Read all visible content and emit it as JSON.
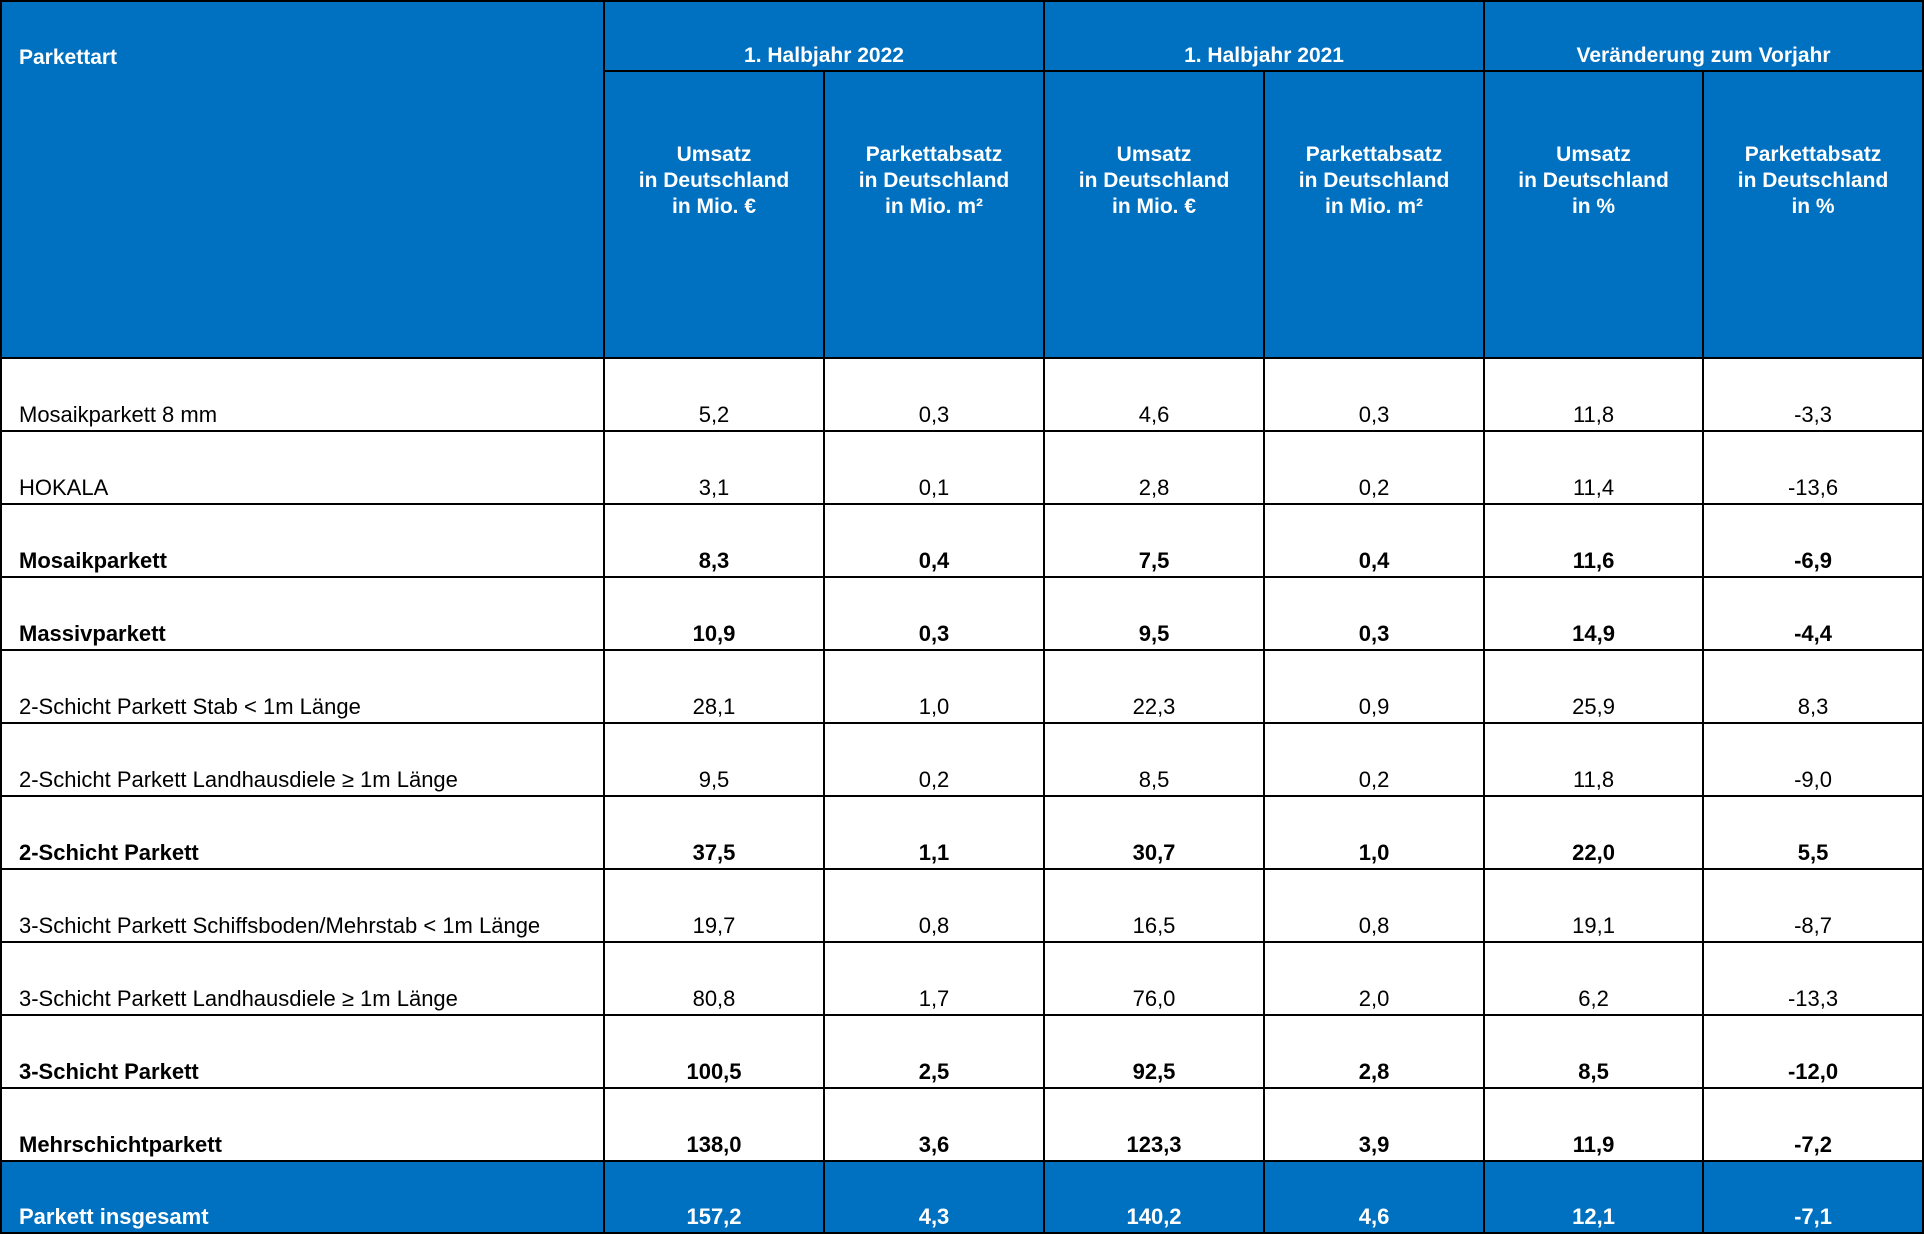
{
  "header": {
    "col_label": "Parkettart",
    "groups": [
      "1. Halbjahr  2022",
      "1. Halbjahr 2021",
      "Veränderung zum Vorjahr"
    ],
    "sub": [
      [
        "Umsatz",
        "in Deutschland",
        "in Mio. €"
      ],
      [
        "Parkettabsatz",
        "in Deutschland",
        "in Mio. m²"
      ],
      [
        "Umsatz",
        "in Deutschland",
        "in Mio. €"
      ],
      [
        "Parkettabsatz",
        "in Deutschland",
        "in Mio. m²"
      ],
      [
        "Umsatz",
        "in Deutschland",
        "in %"
      ],
      [
        "Parkettabsatz",
        "in Deutschland",
        "in %"
      ]
    ]
  },
  "rows": [
    {
      "label": "Mosaikparkett 8 mm",
      "bold": false,
      "values": [
        "5,2",
        "0,3",
        "4,6",
        "0,3",
        "11,8",
        "-3,3"
      ]
    },
    {
      "label": "HOKALA",
      "bold": false,
      "values": [
        "3,1",
        "0,1",
        "2,8",
        "0,2",
        "11,4",
        "-13,6"
      ]
    },
    {
      "label": "Mosaikparkett",
      "bold": true,
      "values": [
        "8,3",
        "0,4",
        "7,5",
        "0,4",
        "11,6",
        "-6,9"
      ]
    },
    {
      "label": "Massivparkett",
      "bold": true,
      "values": [
        "10,9",
        "0,3",
        "9,5",
        "0,3",
        "14,9",
        "-4,4"
      ]
    },
    {
      "label": "2-Schicht Parkett  Stab < 1m Länge",
      "bold": false,
      "values": [
        "28,1",
        "1,0",
        "22,3",
        "0,9",
        "25,9",
        "8,3"
      ]
    },
    {
      "label": "2-Schicht Parkett Landhausdiele ≥ 1m Länge",
      "bold": false,
      "values": [
        "9,5",
        "0,2",
        "8,5",
        "0,2",
        "11,8",
        "-9,0"
      ]
    },
    {
      "label": "2-Schicht Parkett",
      "bold": true,
      "values": [
        "37,5",
        "1,1",
        "30,7",
        "1,0",
        "22,0",
        "5,5"
      ]
    },
    {
      "label": "3-Schicht Parkett Schiffsboden/Mehrstab < 1m Länge",
      "bold": false,
      "values": [
        "19,7",
        "0,8",
        "16,5",
        "0,8",
        "19,1",
        "-8,7"
      ]
    },
    {
      "label": "3-Schicht Parkett Landhausdiele ≥ 1m Länge",
      "bold": false,
      "values": [
        "80,8",
        "1,7",
        "76,0",
        "2,0",
        "6,2",
        "-13,3"
      ]
    },
    {
      "label": "3-Schicht Parkett",
      "bold": true,
      "values": [
        "100,5",
        "2,5",
        "92,5",
        "2,8",
        "8,5",
        "-12,0"
      ]
    },
    {
      "label": "Mehrschichtparkett",
      "bold": true,
      "values": [
        "138,0",
        "3,6",
        "123,3",
        "3,9",
        "11,9",
        "-7,2"
      ]
    }
  ],
  "total": {
    "label": "Parkett insgesamt",
    "values": [
      "157,2",
      "4,3",
      "140,2",
      "4,6",
      "12,1",
      "-7,1"
    ]
  },
  "colors": {
    "header_bg": "#0070c0",
    "header_text": "#ffffff",
    "border": "#000000"
  }
}
